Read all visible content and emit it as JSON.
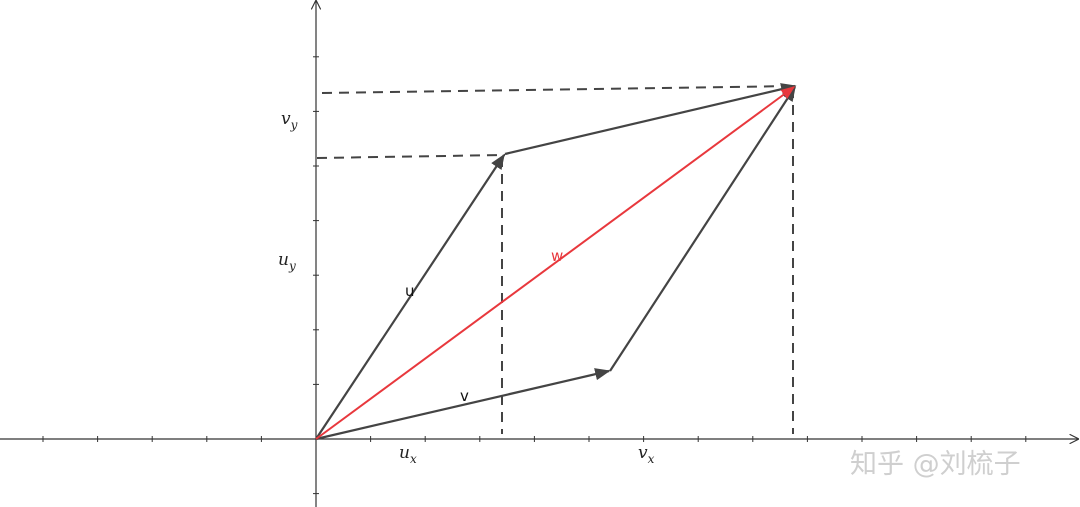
{
  "labels": {
    "u": "u",
    "v": "v",
    "w": "w",
    "ux": "u",
    "ux_sub": "x",
    "uy": "u",
    "uy_sub": "y",
    "vx": "v",
    "vx_sub": "x",
    "vy": "v",
    "vy_sub": "y"
  },
  "watermark": "知乎 @刘梳子",
  "colors": {
    "vector": "#444444",
    "resultant": "#e8383d",
    "axis": "#333333",
    "watermark": "#cfcfcf"
  }
}
